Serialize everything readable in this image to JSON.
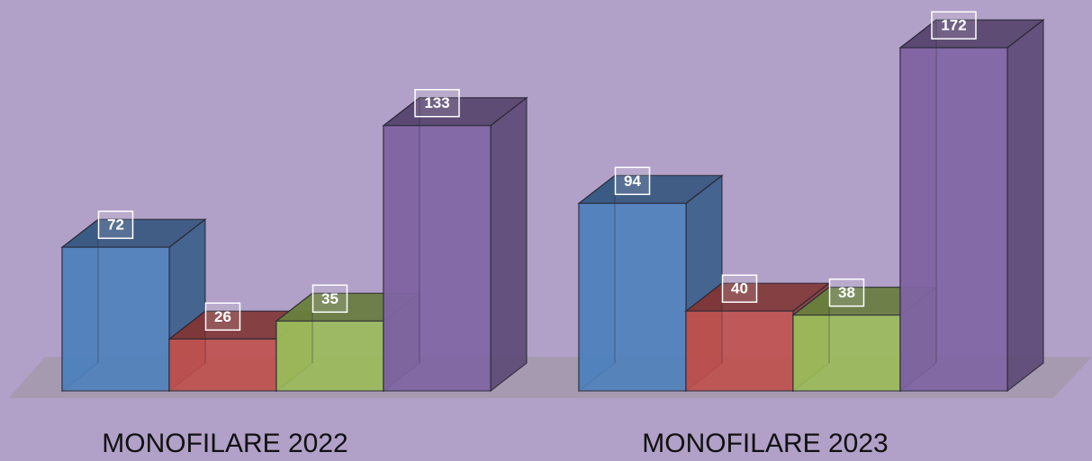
{
  "chart_data": {
    "type": "bar3d",
    "categories": [
      "MONOFILARE 2022",
      "MONOFILARE 2023"
    ],
    "series": [
      {
        "color": "#4f81bd",
        "values": [
          72,
          94
        ]
      },
      {
        "color": "#c0504d",
        "values": [
          26,
          40
        ]
      },
      {
        "color": "#9bbb59",
        "values": [
          35,
          38
        ]
      },
      {
        "color": "#8064a2",
        "values": [
          133,
          172
        ]
      }
    ]
  }
}
